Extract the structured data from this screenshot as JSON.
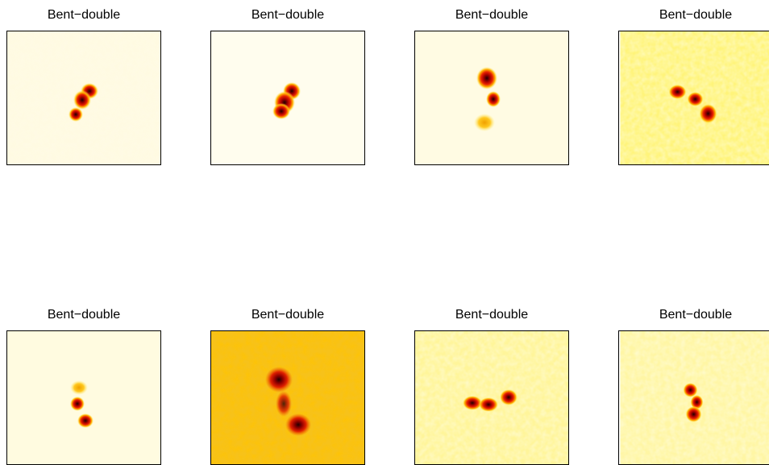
{
  "panels": [
    {
      "title": "Bent−double",
      "background": "#fffbe6"
    },
    {
      "title": "Bent−double",
      "background": "#fffdee"
    },
    {
      "title": "Bent−double",
      "background": "#fffbe3"
    },
    {
      "title": "Bent−double",
      "background": "#fff47a"
    },
    {
      "title": "Bent−double",
      "background": "#fffbe0"
    },
    {
      "title": "Bent−double",
      "background": "#f7c21a"
    },
    {
      "title": "Bent−double",
      "background": "#fff59a"
    },
    {
      "title": "Bent−double",
      "background": "#fff6a4"
    }
  ],
  "colormap": [
    "#ffffff",
    "#ffff66",
    "#ffcc00",
    "#ff6600",
    "#cc0000",
    "#330000"
  ]
}
